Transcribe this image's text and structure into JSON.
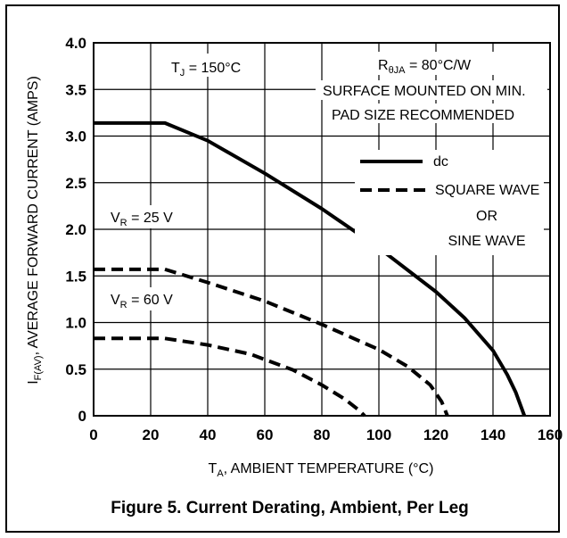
{
  "chart_data": {
    "type": "line",
    "title": "Figure 5. Current Derating, Ambient, Per Leg",
    "xlabel": {
      "main": "T",
      "sub": "A",
      "rest": ", AMBIENT TEMPERATURE (°C)"
    },
    "ylabel": {
      "main": "I",
      "sub": "F(AV)",
      "rest": ", AVERAGE FORWARD CURRENT (AMPS)"
    },
    "xlim": [
      0,
      160
    ],
    "ylim": [
      0,
      4.0
    ],
    "x_ticks": [
      "0",
      "20",
      "40",
      "60",
      "80",
      "100",
      "120",
      "140",
      "160"
    ],
    "y_ticks": [
      "0",
      "0.5",
      "1.0",
      "1.5",
      "2.0",
      "2.5",
      "3.0",
      "3.5",
      "4.0"
    ],
    "grid": true,
    "series": [
      {
        "name": "dc",
        "style": "solid",
        "points": [
          [
            0,
            3.14
          ],
          [
            25,
            3.14
          ],
          [
            40,
            2.95
          ],
          [
            60,
            2.6
          ],
          [
            80,
            2.22
          ],
          [
            100,
            1.8
          ],
          [
            120,
            1.33
          ],
          [
            130,
            1.05
          ],
          [
            140,
            0.7
          ],
          [
            145,
            0.44
          ],
          [
            148,
            0.25
          ],
          [
            151,
            0
          ]
        ]
      },
      {
        "name": "SQUARE WAVE OR SINE WAVE",
        "label": {
          "main": "V",
          "sub": "R",
          "rest": " = 25 V"
        },
        "style": "dashed",
        "points": [
          [
            0,
            1.57
          ],
          [
            25,
            1.57
          ],
          [
            40,
            1.43
          ],
          [
            60,
            1.23
          ],
          [
            80,
            0.98
          ],
          [
            100,
            0.71
          ],
          [
            110,
            0.53
          ],
          [
            118,
            0.33
          ],
          [
            122,
            0.15
          ],
          [
            124,
            0
          ]
        ]
      },
      {
        "name": "SQUARE WAVE OR SINE WAVE",
        "label": {
          "main": "V",
          "sub": "R",
          "rest": " = 60 V"
        },
        "style": "dashed",
        "points": [
          [
            0,
            0.83
          ],
          [
            25,
            0.83
          ],
          [
            40,
            0.76
          ],
          [
            55,
            0.66
          ],
          [
            70,
            0.49
          ],
          [
            80,
            0.33
          ],
          [
            88,
            0.18
          ],
          [
            93,
            0.06
          ],
          [
            95,
            0
          ]
        ]
      }
    ],
    "annotations": {
      "tj": {
        "main": "T",
        "sub": "J",
        "rest": " = 150°C"
      },
      "rtheta": {
        "main": "R",
        "sub": "θJA",
        "rest": " = 80°C/W"
      },
      "mount_line1": "SURFACE MOUNTED ON MIN.",
      "mount_line2": "PAD SIZE RECOMMENDED"
    },
    "legend": {
      "placement": "top-right",
      "entries": [
        {
          "label": "dc",
          "style": "solid"
        },
        {
          "label": "SQUARE WAVE",
          "style": "dashed"
        }
      ],
      "extra_lines": [
        "OR",
        "SINE WAVE"
      ]
    }
  }
}
